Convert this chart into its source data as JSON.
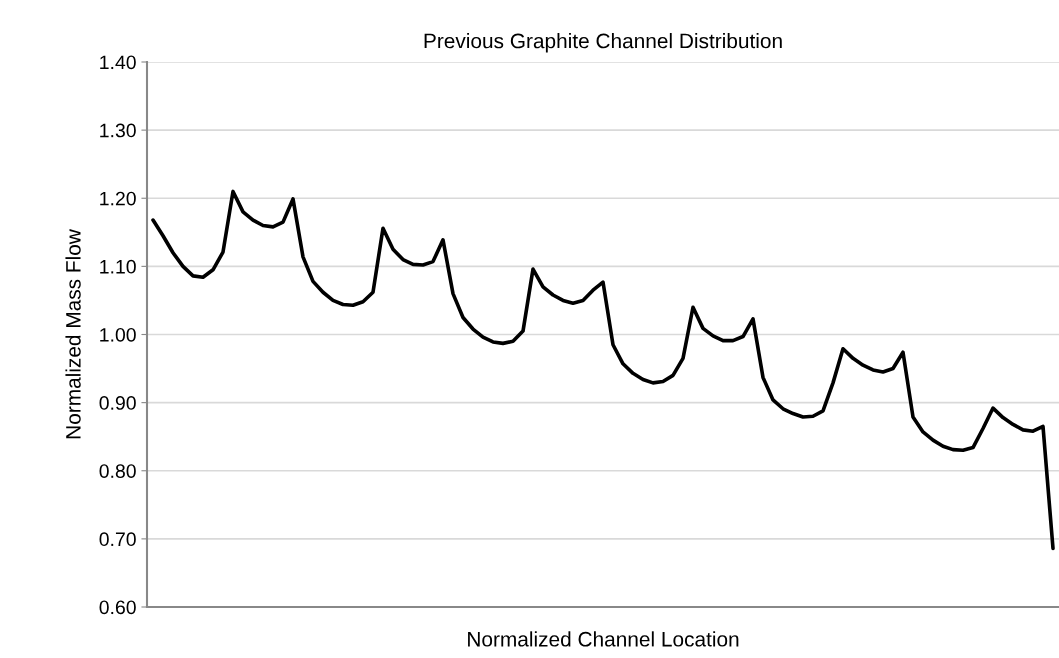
{
  "chart_data": {
    "type": "line",
    "title": "Previous Graphite Channel Distribution",
    "xlabel": "Normalized Channel Location",
    "ylabel": "Normalized Mass Flow",
    "categories": [
      null,
      null,
      null,
      null,
      null,
      null,
      null,
      null,
      null,
      null,
      null,
      null,
      null,
      null,
      null,
      null,
      null,
      null,
      null,
      null,
      null,
      null,
      null,
      null,
      null,
      null,
      null,
      null,
      null,
      null,
      null,
      null,
      null,
      null,
      null,
      null,
      null,
      null,
      null,
      null,
      null,
      null,
      null,
      null,
      null,
      null,
      null,
      null,
      null,
      null,
      null,
      null,
      null,
      null,
      null,
      null,
      null,
      null,
      null,
      null,
      null,
      null,
      null,
      null,
      null,
      null,
      null,
      null,
      null,
      null,
      null,
      null,
      null,
      null,
      null,
      null,
      null,
      null,
      null,
      null,
      null,
      null,
      null,
      null,
      null,
      null,
      null,
      null,
      null,
      null,
      null
    ],
    "series": [
      {
        "color": "#000000",
        "values": [
          1.168,
          1.145,
          1.12,
          1.1,
          1.086,
          1.084,
          1.095,
          1.121,
          1.21,
          1.18,
          1.168,
          1.16,
          1.158,
          1.165,
          1.199,
          1.114,
          1.078,
          1.062,
          1.05,
          1.044,
          1.043,
          1.048,
          1.062,
          1.156,
          1.125,
          1.11,
          1.103,
          1.102,
          1.107,
          1.139,
          1.06,
          1.025,
          1.008,
          0.996,
          0.989,
          0.987,
          0.99,
          1.005,
          1.096,
          1.07,
          1.058,
          1.05,
          1.046,
          1.05,
          1.065,
          1.077,
          0.985,
          0.957,
          0.943,
          0.934,
          0.929,
          0.931,
          0.94,
          0.965,
          1.04,
          1.009,
          0.998,
          0.991,
          0.991,
          0.997,
          1.023,
          0.937,
          0.904,
          0.891,
          0.884,
          0.879,
          0.88,
          0.888,
          0.929,
          0.979,
          0.965,
          0.955,
          0.948,
          0.945,
          0.95,
          0.974,
          0.879,
          0.857,
          0.845,
          0.836,
          0.831,
          0.83,
          0.834,
          0.862,
          0.892,
          0.878,
          0.868,
          0.86,
          0.858,
          0.865,
          0.686
        ]
      }
    ],
    "ylim": [
      0.6,
      1.4
    ],
    "yticks": [
      {
        "value": 0.6,
        "label": "0.60"
      },
      {
        "value": 0.7,
        "label": "0.70"
      },
      {
        "value": 0.8,
        "label": "0.80"
      },
      {
        "value": 0.9,
        "label": "0.90"
      },
      {
        "value": 1.0,
        "label": "1.00"
      },
      {
        "value": 1.1,
        "label": "1.10"
      },
      {
        "value": 1.2,
        "label": "1.20"
      },
      {
        "value": 1.3,
        "label": "1.30"
      },
      {
        "value": 1.4,
        "label": "1.40"
      }
    ],
    "grid": "y",
    "marker": "none",
    "line_style": "solid"
  }
}
